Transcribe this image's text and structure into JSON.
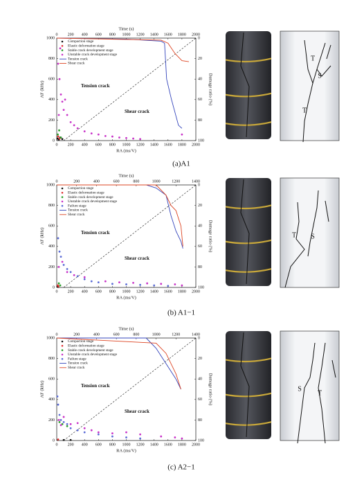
{
  "chart_data": [
    {
      "type": "scatter",
      "xlabel": "RA (ms/V)",
      "ylabel": "AF (kHz)",
      "x2label": "Time (s)",
      "y2label": "Damage ratio (%)",
      "xlim": [
        0,
        2000
      ],
      "xticks": [
        0,
        200,
        400,
        600,
        800,
        1000,
        1200,
        1400,
        1600,
        1800,
        2000
      ],
      "ylim": [
        0,
        1000
      ],
      "yticks": [
        0,
        200,
        400,
        600,
        800,
        1000
      ],
      "x2lim": [
        0,
        2000
      ],
      "x2ticks": [
        0,
        200,
        400,
        600,
        800,
        1000,
        1200,
        1400,
        1600,
        1800,
        2000
      ],
      "y2lim": [
        0,
        100
      ],
      "y2ticks": [
        0,
        20,
        40,
        60,
        80,
        100
      ],
      "y2_reversed": true,
      "annotations": [
        "Tension crack",
        "Shear crack"
      ],
      "series": [
        {
          "name": "Compaction stage",
          "color": "#111111",
          "x": [
            10,
            30,
            50,
            80
          ],
          "values": [
            20,
            10,
            30,
            15
          ]
        },
        {
          "name": "Elastic deformation stage",
          "color": "#e03030",
          "x": [
            20,
            40
          ],
          "values": [
            40,
            20
          ]
        },
        {
          "name": "Stable crack development stage",
          "color": "#2aa02a",
          "x": [
            15,
            35,
            60
          ],
          "values": [
            60,
            100,
            30
          ]
        },
        {
          "name": "Unstable crack development stage",
          "color": "#c832c8",
          "x": [
            20,
            40,
            60,
            80,
            100,
            150,
            200,
            250,
            300,
            400,
            500,
            600,
            700,
            800,
            900,
            1000,
            1100,
            1200,
            1800,
            50,
            120,
            30
          ],
          "values": [
            750,
            600,
            450,
            380,
            300,
            250,
            180,
            150,
            120,
            90,
            70,
            60,
            45,
            40,
            30,
            25,
            20,
            15,
            60,
            900,
            400,
            250
          ]
        },
        {
          "name": "Tension crack",
          "color": "#3344bb",
          "kind": "line",
          "axis": "y2",
          "xaxis": "x2",
          "x": [
            0,
            1000,
            1500,
            1550,
            1580,
            1650,
            1750,
            1800
          ],
          "values": [
            0,
            1,
            3,
            5,
            40,
            60,
            85,
            88
          ]
        },
        {
          "name": "Shear crack",
          "color": "#dd4422",
          "kind": "line",
          "axis": "y2",
          "xaxis": "x2",
          "x": [
            0,
            1500,
            1600,
            1700,
            1800,
            1900
          ],
          "values": [
            0,
            2,
            5,
            15,
            22,
            23
          ]
        }
      ]
    },
    {
      "type": "scatter",
      "xlabel": "RA (ms/V)",
      "ylabel": "AF (kHz)",
      "x2label": "Time (s)",
      "y2label": "Damage ratio (%)",
      "xlim": [
        0,
        2000
      ],
      "xticks": [
        0,
        200,
        400,
        600,
        800,
        1000,
        1200,
        1400,
        1600,
        1800,
        2000
      ],
      "ylim": [
        0,
        1000
      ],
      "yticks": [
        0,
        200,
        400,
        600,
        800,
        1000
      ],
      "x2lim": [
        0,
        1400
      ],
      "x2ticks": [
        0,
        200,
        400,
        600,
        800,
        1000,
        1200,
        1400
      ],
      "y2lim": [
        0,
        100
      ],
      "y2ticks": [
        0,
        20,
        40,
        60,
        80,
        100
      ],
      "y2_reversed": true,
      "annotations": [
        "Tension crack",
        "Shear crack"
      ],
      "series": [
        {
          "name": "Compaction stage",
          "color": "#111111",
          "x": [
            10,
            20
          ],
          "values": [
            10,
            5
          ]
        },
        {
          "name": "Elastic deformation stage",
          "color": "#e03030",
          "x": [
            15,
            25
          ],
          "values": [
            20,
            10
          ]
        },
        {
          "name": "Stable crack development stage",
          "color": "#2aa02a",
          "x": [
            30,
            50
          ],
          "values": [
            40,
            20
          ]
        },
        {
          "name": "Unstable crack development stage",
          "color": "#c832c8",
          "x": [
            30,
            80,
            150,
            250,
            400,
            700,
            900,
            1100,
            1300,
            1500,
            1700,
            1800
          ],
          "values": [
            200,
            250,
            150,
            120,
            100,
            60,
            50,
            45,
            40,
            35,
            30,
            20
          ]
        },
        {
          "name": "Failure stage",
          "color": "#5b6bd6",
          "x": [
            20,
            40,
            60,
            100,
            150,
            200,
            300,
            400,
            500,
            600,
            800,
            1000,
            1200,
            1400,
            1600
          ],
          "values": [
            480,
            350,
            300,
            220,
            180,
            150,
            110,
            80,
            60,
            50,
            35,
            30,
            25,
            20,
            15
          ]
        },
        {
          "name": "Tension crack",
          "color": "#3344bb",
          "kind": "line",
          "axis": "y2",
          "xaxis": "x2",
          "x": [
            0,
            900,
            1000,
            1100,
            1150,
            1200,
            1250,
            1270
          ],
          "values": [
            0,
            0,
            3,
            10,
            30,
            45,
            55,
            62
          ]
        },
        {
          "name": "Shear crack",
          "color": "#dd4422",
          "kind": "line",
          "axis": "y2",
          "xaxis": "x2",
          "x": [
            0,
            1000,
            1100,
            1150,
            1200,
            1250,
            1270
          ],
          "values": [
            0,
            0,
            10,
            20,
            25,
            40,
            60
          ]
        }
      ]
    },
    {
      "type": "scatter",
      "xlabel": "RA (ms/V)",
      "ylabel": "AF (kHz)",
      "x2label": "Time (s)",
      "y2label": "Damage ratio (%)",
      "xlim": [
        0,
        2000
      ],
      "xticks": [
        0,
        200,
        400,
        600,
        800,
        1000,
        1200,
        1400,
        1600,
        1800,
        2000
      ],
      "ylim": [
        0,
        1000
      ],
      "yticks": [
        0,
        200,
        400,
        600,
        800,
        1000
      ],
      "x2lim": [
        0,
        1400
      ],
      "x2ticks": [
        0,
        200,
        400,
        600,
        800,
        1000,
        1200,
        1400
      ],
      "y2lim": [
        0,
        100
      ],
      "y2ticks": [
        0,
        20,
        40,
        60,
        80,
        100
      ],
      "y2_reversed": true,
      "annotations": [
        "Tension crack",
        "Shear crack"
      ],
      "series": [
        {
          "name": "Compaction stage",
          "color": "#111111",
          "x": [
            100,
            200
          ],
          "values": [
            5,
            5
          ]
        },
        {
          "name": "Elastic deformation stage",
          "color": "#e03030",
          "x": [
            20
          ],
          "values": [
            10
          ]
        },
        {
          "name": "Stable crack development stage",
          "color": "#2aa02a",
          "x": [
            40,
            80,
            150
          ],
          "values": [
            180,
            160,
            140
          ]
        },
        {
          "name": "Unstable crack development stage",
          "color": "#c832c8",
          "x": [
            30,
            60,
            100,
            200,
            300,
            400,
            500,
            600,
            800,
            1000,
            1200,
            1500,
            1700,
            1800
          ],
          "values": [
            200,
            150,
            230,
            160,
            170,
            120,
            100,
            80,
            70,
            80,
            60,
            40,
            30,
            20
          ]
        },
        {
          "name": "Failure stage",
          "color": "#5b6bd6",
          "x": [
            10,
            20,
            40,
            60,
            100,
            150,
            200,
            300,
            400,
            600,
            800,
            1000,
            1200
          ],
          "values": [
            430,
            350,
            250,
            200,
            180,
            160,
            120,
            100,
            80,
            60,
            40,
            30,
            20
          ]
        },
        {
          "name": "Tension crack",
          "color": "#3344bb",
          "kind": "line",
          "axis": "y2",
          "xaxis": "x2",
          "x": [
            0,
            900,
            1000,
            1100,
            1200,
            1250
          ],
          "values": [
            0,
            0,
            10,
            25,
            40,
            50
          ]
        },
        {
          "name": "Shear crack",
          "color": "#dd4422",
          "kind": "line",
          "axis": "y2",
          "xaxis": "x2",
          "x": [
            0,
            1000,
            1100,
            1200,
            1250
          ],
          "values": [
            0,
            5,
            15,
            35,
            50
          ]
        }
      ]
    }
  ],
  "captions": [
    "(a)A1",
    "(b) A1−1",
    "(c) A2−1"
  ],
  "sketch_labels": [
    [
      "T",
      "S",
      "T"
    ],
    [
      "T",
      "S"
    ],
    [
      "S",
      "T"
    ]
  ]
}
